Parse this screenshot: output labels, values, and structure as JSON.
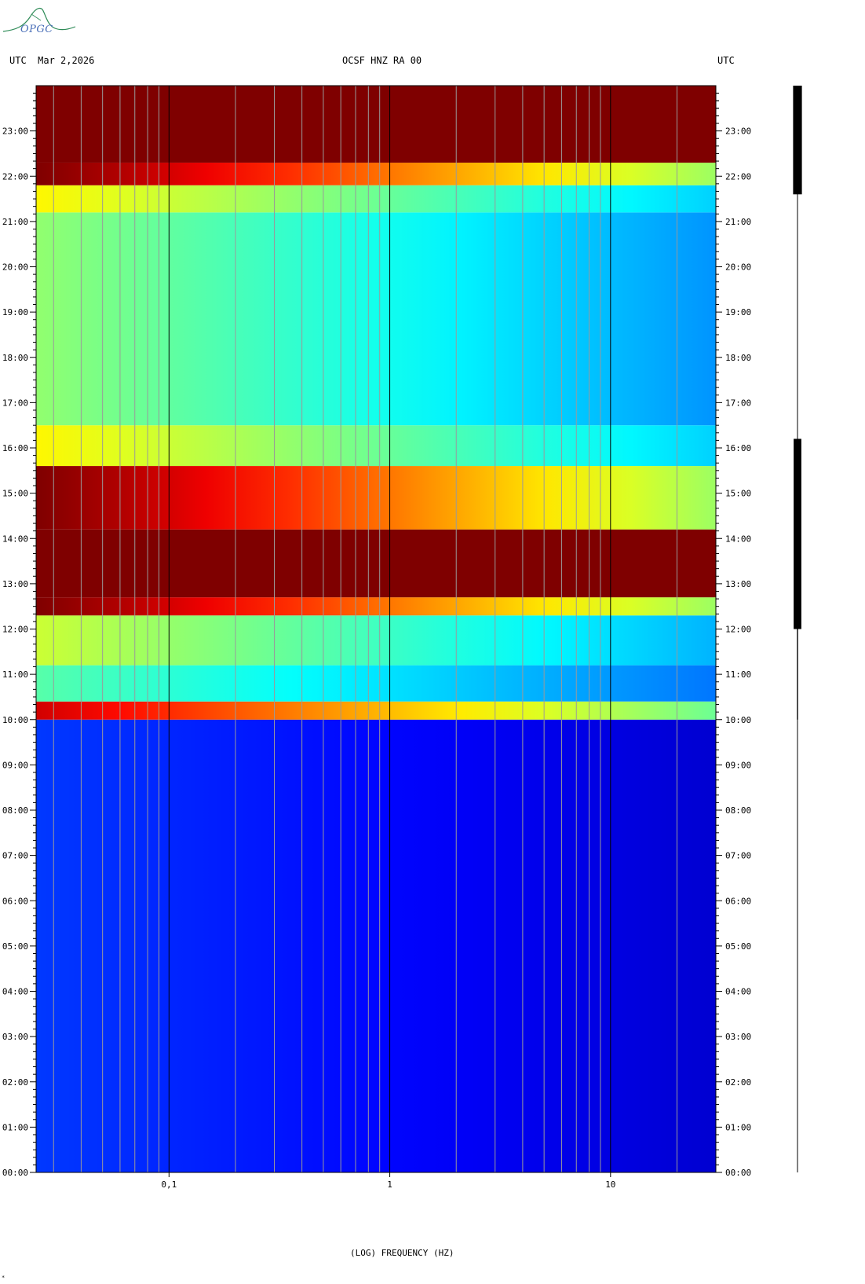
{
  "header": {
    "left": "UTC  Mar 2,2026",
    "center": "OCSF HNZ RA 00",
    "right": "UTC"
  },
  "logo": {
    "text": "OPGC",
    "color": "#4a6fb8",
    "arc_color": "#2e8b57"
  },
  "chart_data": {
    "type": "heatmap",
    "title": "OCSF HNZ RA 00",
    "xlabel": "(LOG) FREQUENCY (HZ)",
    "x_scale": "log",
    "xlim": [
      0.025,
      30
    ],
    "x_ticks": [
      {
        "value": 0.1,
        "label": "0,1"
      },
      {
        "value": 1,
        "label": "1"
      },
      {
        "value": 10,
        "label": "10"
      }
    ],
    "x_gridlines": [
      0.03,
      0.04,
      0.05,
      0.06,
      0.07,
      0.08,
      0.09,
      0.1,
      0.2,
      0.3,
      0.4,
      0.5,
      0.6,
      0.7,
      0.8,
      0.9,
      1,
      2,
      3,
      4,
      5,
      6,
      7,
      8,
      9,
      10,
      20
    ],
    "ylim_hours": [
      0,
      24
    ],
    "y_ticks": [
      "00:00",
      "01:00",
      "02:00",
      "03:00",
      "04:00",
      "05:00",
      "06:00",
      "07:00",
      "08:00",
      "09:00",
      "10:00",
      "11:00",
      "12:00",
      "13:00",
      "14:00",
      "15:00",
      "16:00",
      "17:00",
      "18:00",
      "19:00",
      "20:00",
      "21:00",
      "22:00",
      "23:00"
    ],
    "colormap": [
      "#00007f",
      "#0000ff",
      "#0080ff",
      "#00ffff",
      "#80ff80",
      "#ffff00",
      "#ff8000",
      "#ff0000",
      "#7f0000"
    ],
    "intensity_bands": [
      {
        "start_hour": 0.0,
        "end_hour": 10.0,
        "level": 0.12
      },
      {
        "start_hour": 10.0,
        "end_hour": 10.4,
        "level": 0.8
      },
      {
        "start_hour": 10.4,
        "end_hour": 11.2,
        "level": 0.4
      },
      {
        "start_hour": 11.2,
        "end_hour": 12.3,
        "level": 0.5
      },
      {
        "start_hour": 12.3,
        "end_hour": 12.7,
        "level": 0.88
      },
      {
        "start_hour": 12.7,
        "end_hour": 14.2,
        "level": 1.0
      },
      {
        "start_hour": 14.2,
        "end_hour": 15.6,
        "level": 0.88
      },
      {
        "start_hour": 15.6,
        "end_hour": 16.5,
        "level": 0.55
      },
      {
        "start_hour": 16.5,
        "end_hour": 21.2,
        "level": 0.45
      },
      {
        "start_hour": 21.2,
        "end_hour": 21.8,
        "level": 0.55
      },
      {
        "start_hour": 21.8,
        "end_hour": 22.3,
        "level": 0.88
      },
      {
        "start_hour": 22.3,
        "end_hour": 24.0,
        "level": 1.0
      }
    ],
    "trace_activity": [
      {
        "start_hour": 0.0,
        "end_hour": 10.0,
        "amplitude": 0.0
      },
      {
        "start_hour": 10.0,
        "end_hour": 12.0,
        "amplitude": 0.1
      },
      {
        "start_hour": 12.0,
        "end_hour": 16.2,
        "amplitude": 0.7
      },
      {
        "start_hour": 16.2,
        "end_hour": 21.6,
        "amplitude": 0.0
      },
      {
        "start_hour": 21.6,
        "end_hour": 24.0,
        "amplitude": 0.8
      }
    ]
  }
}
